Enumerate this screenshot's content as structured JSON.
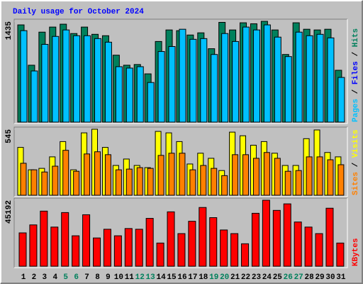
{
  "title": "Daily usage for October 2024",
  "categories": [
    "1",
    "2",
    "3",
    "4",
    "5",
    "6",
    "7",
    "8",
    "9",
    "10",
    "11",
    "12",
    "13",
    "14",
    "15",
    "16",
    "17",
    "18",
    "19",
    "20",
    "21",
    "22",
    "23",
    "24",
    "25",
    "26",
    "27",
    "28",
    "29",
    "30",
    "31"
  ],
  "category_colors": [
    "#000000",
    "#000000",
    "#000000",
    "#000000",
    "#00805c",
    "#00805c",
    "#000000",
    "#000000",
    "#000000",
    "#000000",
    "#000000",
    "#00805c",
    "#00805c",
    "#000000",
    "#000000",
    "#000000",
    "#000000",
    "#000000",
    "#00805c",
    "#00805c",
    "#000000",
    "#000000",
    "#000000",
    "#000000",
    "#000000",
    "#00805c",
    "#00805c",
    "#000000",
    "#000000",
    "#000000",
    "#000000"
  ],
  "chart_data": [
    {
      "type": "bar",
      "ylim": [
        0,
        1435
      ],
      "yticks": [
        1435
      ],
      "side_label": [
        {
          "text": "Pages",
          "color": "#00c0ff"
        },
        {
          "text": " / ",
          "color": "#000000"
        },
        {
          "text": "Files",
          "color": "#0000ff"
        },
        {
          "text": " / ",
          "color": "#000000"
        },
        {
          "text": "Hits",
          "color": "#00805c"
        }
      ],
      "series": [
        {
          "color": "#00805c",
          "values": [
            1384,
            810,
            1281,
            1353,
            1394,
            1261,
            1353,
            1250,
            1230,
            953,
            810,
            820,
            687,
            1148,
            1312,
            1302,
            1240,
            1271,
            1045,
            1420,
            1312,
            1414,
            1400,
            1435,
            1312,
            963,
            1414,
            1322,
            1312,
            1322,
            738
          ]
        },
        {
          "color": "#00c0ff",
          "values": [
            1302,
            728,
            1107,
            1220,
            1312,
            1230,
            1230,
            1189,
            1138,
            789,
            769,
            789,
            564,
            1005,
            1076,
            1322,
            1179,
            1189,
            963,
            1261,
            1148,
            1353,
            1312,
            1384,
            1210,
            933,
            1281,
            1230,
            1250,
            1199,
            636
          ]
        }
      ]
    },
    {
      "type": "bar",
      "ylim": [
        0,
        545
      ],
      "yticks": [
        545
      ],
      "side_label": [
        {
          "text": "Sites",
          "color": "#ff8000"
        },
        {
          "text": " / ",
          "color": "#000000"
        },
        {
          "text": "Visits",
          "color": "#ffff00"
        }
      ],
      "series": [
        {
          "color": "#ffff00",
          "values": [
            395,
            210,
            222,
            317,
            443,
            210,
            515,
            545,
            395,
            246,
            299,
            246,
            228,
            527,
            515,
            443,
            258,
            347,
            305,
            204,
            521,
            491,
            413,
            443,
            347,
            246,
            246,
            467,
            539,
            353,
            317
          ]
        },
        {
          "color": "#ff8000",
          "values": [
            264,
            210,
            192,
            240,
            371,
            198,
            341,
            359,
            335,
            210,
            216,
            228,
            222,
            329,
            347,
            347,
            210,
            246,
            222,
            162,
            335,
            335,
            305,
            353,
            305,
            198,
            204,
            317,
            317,
            293,
            252
          ]
        }
      ]
    },
    {
      "type": "bar",
      "ylim": [
        0,
        45192
      ],
      "yticks": [
        45192
      ],
      "side_label": [
        {
          "text": "KBytes",
          "color": "#ff0000"
        }
      ],
      "series": [
        {
          "color": "#ff0000",
          "values": [
            22843,
            28306,
            37741,
            26816,
            36748,
            20857,
            35258,
            19367,
            25326,
            20857,
            25823,
            25326,
            32775,
            15891,
            37245,
            22347,
            30789,
            40224,
            33272,
            24830,
            22347,
            15394,
            36251,
            45192,
            38238,
            42707,
            30292,
            26816,
            22347,
            39727,
            15891
          ]
        }
      ]
    }
  ]
}
